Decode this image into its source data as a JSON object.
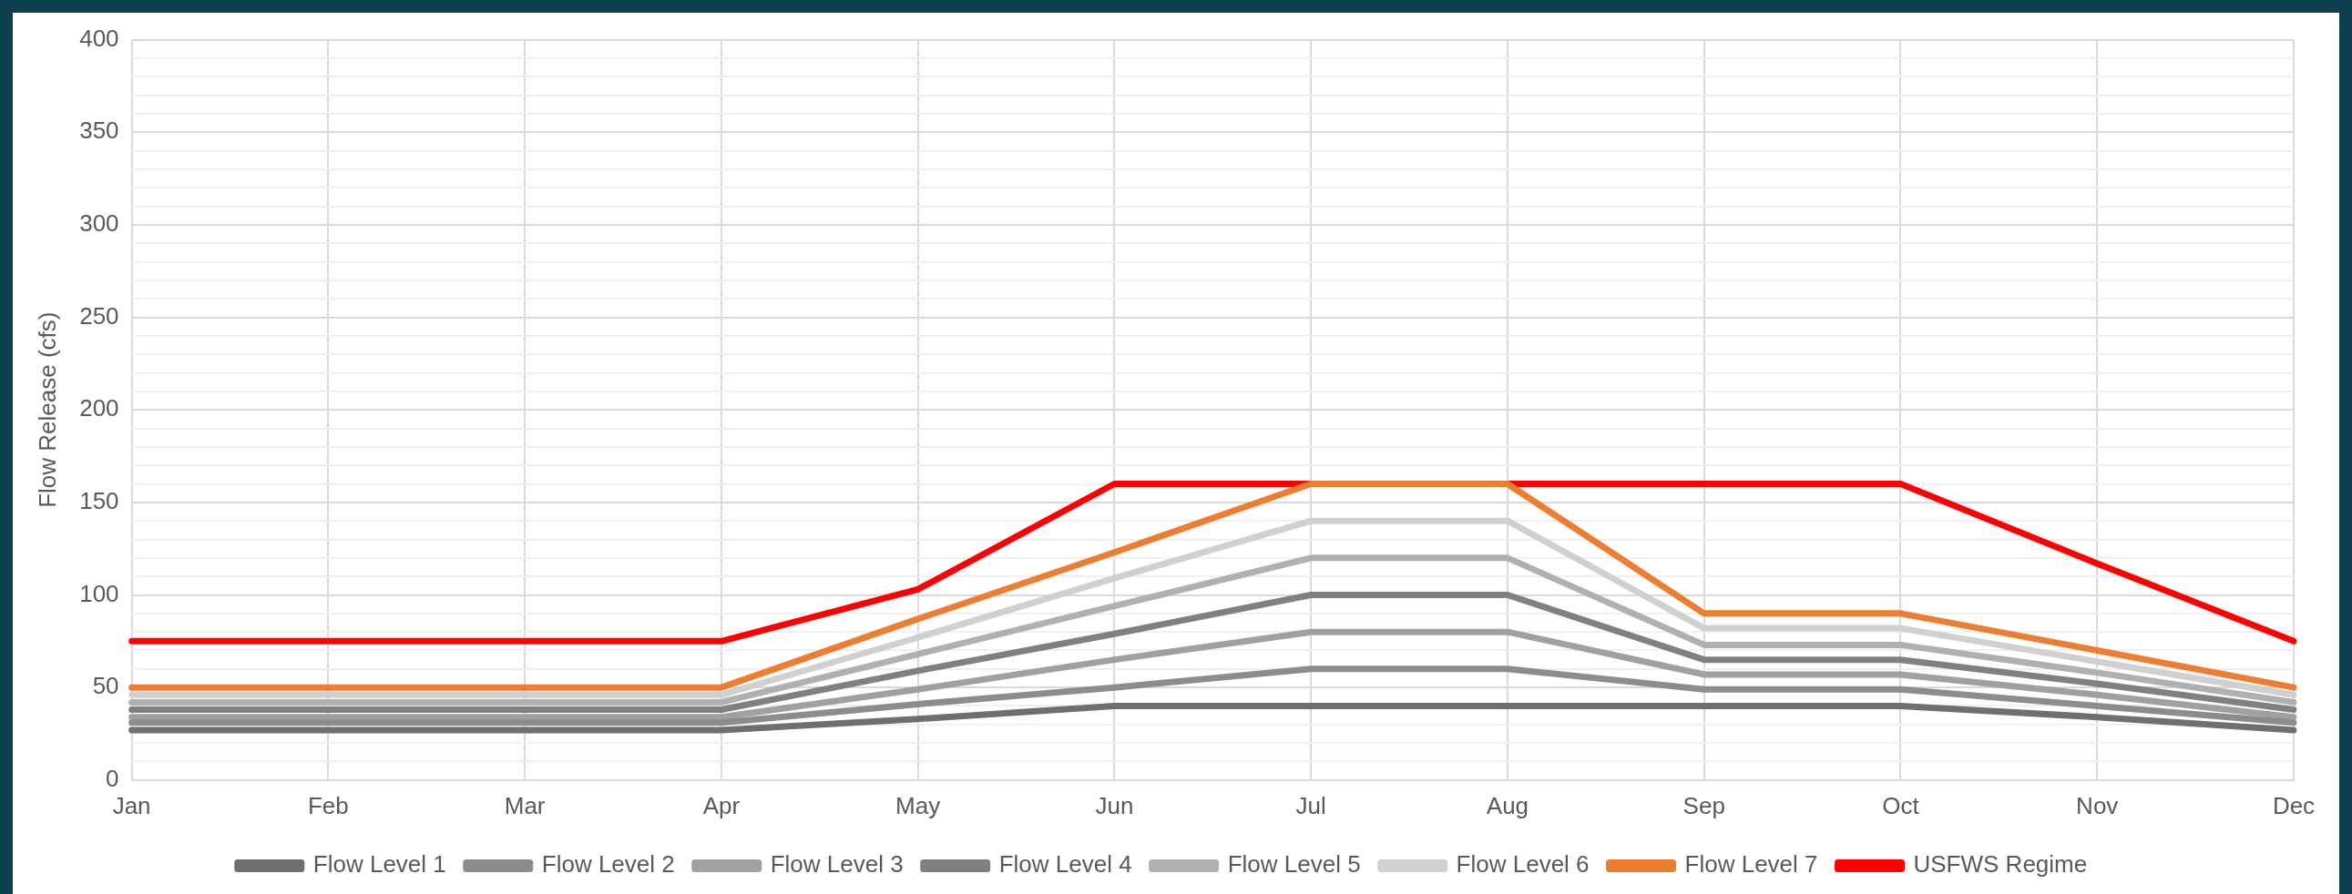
{
  "chart_data": {
    "type": "line",
    "ylabel": "Flow Release (cfs)",
    "categories": [
      "Jan",
      "Feb",
      "Mar",
      "Apr",
      "May",
      "Jun",
      "Jul",
      "Aug",
      "Sep",
      "Oct",
      "Nov",
      "Dec"
    ],
    "series": [
      {
        "name": "Flow Level 1",
        "color": "#6f6f6f",
        "values": [
          27,
          27,
          27,
          27,
          33,
          40,
          40,
          40,
          40,
          40,
          34,
          27
        ]
      },
      {
        "name": "Flow Level 2",
        "color": "#8c8c8c",
        "values": [
          31,
          31,
          31,
          31,
          41,
          50,
          60,
          60,
          49,
          49,
          40,
          31
        ]
      },
      {
        "name": "Flow Level 3",
        "color": "#a0a0a0",
        "values": [
          34,
          34,
          34,
          34,
          49,
          65,
          80,
          80,
          57,
          57,
          46,
          34
        ]
      },
      {
        "name": "Flow Level 4",
        "color": "#808080",
        "values": [
          38,
          38,
          38,
          38,
          59,
          79,
          100,
          100,
          65,
          65,
          52,
          38
        ]
      },
      {
        "name": "Flow Level 5",
        "color": "#b0b0b0",
        "values": [
          42,
          42,
          42,
          42,
          68,
          94,
          120,
          120,
          73,
          73,
          58,
          42
        ]
      },
      {
        "name": "Flow Level 6",
        "color": "#d0d0d0",
        "values": [
          46,
          46,
          46,
          46,
          77,
          109,
          140,
          140,
          82,
          82,
          64,
          46
        ]
      },
      {
        "name": "Flow Level 7",
        "color": "#ed7d31",
        "values": [
          50,
          50,
          50,
          50,
          87,
          123,
          160,
          160,
          90,
          90,
          70,
          50
        ]
      },
      {
        "name": "USFWS Regime",
        "color": "#ff0000",
        "values": [
          75,
          75,
          75,
          75,
          103,
          160,
          160,
          160,
          160,
          160,
          117,
          75
        ]
      }
    ],
    "ylim": [
      0,
      400
    ],
    "yticks": [
      0,
      {
        "value": 10,
        "label": null
      },
      {
        "value": 20,
        "label": null
      },
      {
        "value": 30,
        "label": null
      },
      {
        "value": 40,
        "label": null
      },
      50,
      {
        "value": 60,
        "label": null
      },
      {
        "value": 70,
        "label": null
      },
      {
        "value": 80,
        "label": null
      },
      {
        "value": 90,
        "label": null
      },
      100,
      {
        "value": 110,
        "label": null
      },
      {
        "value": 120,
        "label": null
      },
      {
        "value": 130,
        "label": null
      },
      {
        "value": 140,
        "label": null
      },
      150,
      {
        "value": 160,
        "label": null
      },
      {
        "value": 170,
        "label": null
      },
      {
        "value": 180,
        "label": null
      },
      {
        "value": 190,
        "label": null
      },
      200,
      {
        "value": 210,
        "label": null
      },
      {
        "value": 220,
        "label": null
      },
      {
        "value": 230,
        "label": null
      },
      {
        "value": 240,
        "label": null
      },
      250,
      {
        "value": 260,
        "label": null
      },
      {
        "value": 270,
        "label": null
      },
      {
        "value": 280,
        "label": null
      },
      {
        "value": 290,
        "label": null
      },
      300,
      {
        "value": 310,
        "label": null
      },
      {
        "value": 320,
        "label": null
      },
      {
        "value": 330,
        "label": null
      },
      {
        "value": 340,
        "label": null
      },
      350,
      {
        "value": 360,
        "label": null
      },
      {
        "value": 370,
        "label": null
      },
      {
        "value": 380,
        "label": null
      },
      {
        "value": 390,
        "label": null
      },
      400
    ],
    "grid": true,
    "legend": "bottom",
    "marker": "none",
    "line_style": "solid"
  }
}
